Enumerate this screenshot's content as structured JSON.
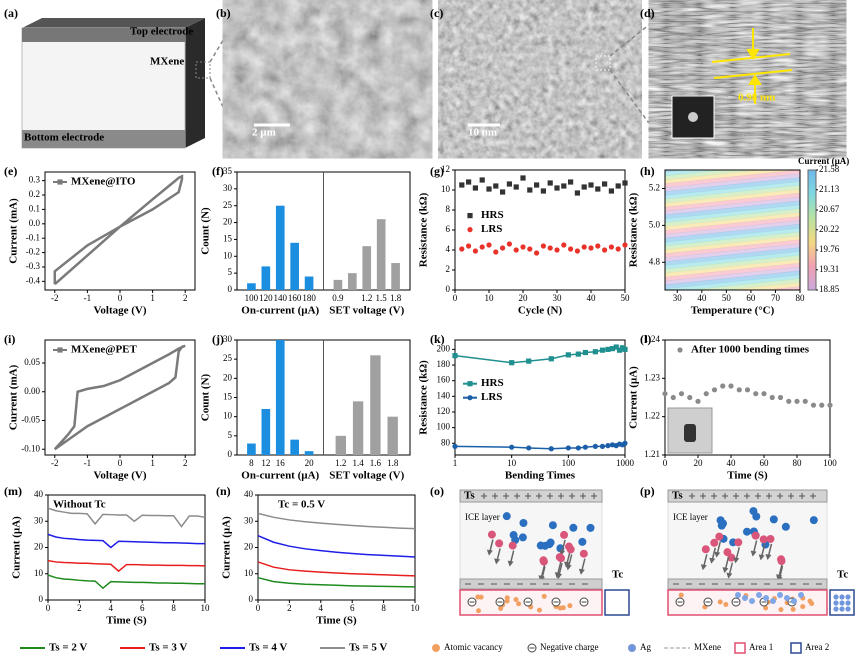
{
  "panels": [
    "(a)",
    "(b)",
    "(c)",
    "(d)",
    "(e)",
    "(f)",
    "(g)",
    "(h)",
    "(i)",
    "(j)",
    "(k)",
    "(l)",
    "(m)",
    "(n)",
    "(o)",
    "(p)"
  ],
  "schematic": {
    "top": "Top electrode",
    "middle": "MXene",
    "bottom": "Bottom electrode"
  },
  "micrographs": [
    {
      "scale_bar": "2 µm"
    },
    {
      "scale_bar": "10 nm"
    },
    {
      "annotation": "0.98 nm"
    }
  ],
  "diagram": {
    "source": "Ts",
    "layer": "ICE layer",
    "control": "Tc"
  },
  "diagram_legend": [
    "Atomic vacancy",
    "Negative charge",
    "Ag",
    "MXene",
    "Area 1",
    "Area 2"
  ],
  "chart_data": [
    {
      "type": "line",
      "x_label": "Voltage (V)",
      "y_label": "Current (mA)",
      "xlim": [
        -2.3,
        2.3
      ],
      "xticks": [
        -2,
        -1,
        0,
        1,
        2
      ],
      "ylim": [
        -0.46,
        0.36
      ],
      "yticks": [
        -0.4,
        -0.3,
        -0.2,
        -0.1,
        {
          "value": 0,
          "label": "0.0"
        },
        0.1,
        0.2,
        0.3
      ],
      "legend": "upper left",
      "series": [
        {
          "name": "MXene@ITO",
          "color": "#7a7a7a",
          "x": [
            -2,
            -1,
            0,
            1,
            1.7,
            1.8,
            1.9,
            1.9,
            1.8,
            1,
            0,
            -1,
            -2,
            -2
          ],
          "values": [
            -0.42,
            -0.22,
            -0.02,
            0.17,
            0.3,
            0.32,
            0.33,
            0.31,
            0.22,
            0.1,
            -0.02,
            -0.15,
            -0.33,
            -0.42
          ]
        }
      ]
    },
    {
      "type": "bar",
      "y_label": "Count (N)",
      "ylim": [
        0,
        35
      ],
      "yticks": [
        0,
        5,
        10,
        15,
        20,
        25,
        30,
        35
      ],
      "groups": [
        {
          "label": "On-current (µA)",
          "categories": [
            "100",
            "120",
            "140",
            "160",
            "180"
          ],
          "values": [
            2,
            7,
            25,
            14,
            4
          ],
          "color": "#1c8ee0"
        },
        {
          "label": "SET voltage (V)",
          "categories": [
            "0.9",
            null,
            "1.2",
            "1.5",
            "1.8"
          ],
          "values": [
            3,
            5,
            13,
            21,
            8
          ],
          "color": "#a0a0a0"
        }
      ]
    },
    {
      "type": "scatter",
      "x_label": "Cycle (N)",
      "y_label": "Resistance (kΩ)",
      "xlim": [
        0,
        50
      ],
      "xticks": [
        0,
        10,
        20,
        30,
        40,
        50
      ],
      "ylim": [
        0,
        12
      ],
      "yticks": [
        0,
        2,
        4,
        6,
        8,
        10,
        12
      ],
      "legend": "center left",
      "x": [
        2,
        4,
        6,
        8,
        10,
        12,
        14,
        16,
        18,
        20,
        22,
        24,
        26,
        28,
        30,
        32,
        34,
        36,
        38,
        40,
        42,
        44,
        46,
        48,
        50
      ],
      "series": [
        {
          "name": "HRS",
          "color": "#333333",
          "marker": "square",
          "values": [
            10.5,
            10.8,
            10.2,
            11,
            10.1,
            10.4,
            9.8,
            10.6,
            10.3,
            11.2,
            10,
            10.5,
            9.9,
            10.7,
            10.2,
            10.4,
            10.8,
            9.7,
            10.3,
            10.5,
            10.1,
            10.6,
            9.9,
            10.4,
            10.7
          ]
        },
        {
          "name": "LRS",
          "color": "#e8322a",
          "marker": "circle",
          "values": [
            4.1,
            4.4,
            3.9,
            4.3,
            4.5,
            3.8,
            4.2,
            4.6,
            4,
            4.3,
            4.1,
            3.7,
            4.4,
            4.2,
            4,
            4.5,
            4.1,
            3.9,
            4.3,
            4.2,
            4.4,
            4,
            4.3,
            4.1,
            4.5
          ]
        }
      ]
    },
    {
      "type": "heatmap",
      "x_label": "Temperature (°C)",
      "y_label": "Resistance (kΩ)",
      "xlim": [
        25,
        80
      ],
      "xticks": [
        30,
        40,
        50,
        60,
        70,
        80
      ],
      "ylim": [
        4.65,
        5.3
      ],
      "yticks": [
        4.8,
        {
          "value": 5.0,
          "label": "5.0"
        },
        5.2
      ],
      "clabel": "Current (µA)",
      "clim": [
        18.85,
        21.58
      ],
      "cticks": [
        18.85,
        19.31,
        19.76,
        20.22,
        20.67,
        21.13,
        21.58
      ],
      "colormap": [
        "#c9a9dc",
        "#f2a0b3",
        "#f4d882",
        "#b7e3a0",
        "#7fd8e0",
        "#6fb8ea"
      ]
    },
    {
      "type": "line",
      "x_label": "Voltage (V)",
      "y_label": "Current (mA)",
      "xlim": [
        -2.3,
        2.3
      ],
      "xticks": [
        -2,
        -1,
        0,
        1,
        2
      ],
      "ylim": [
        -0.11,
        0.09
      ],
      "yticks": [
        {
          "value": -0.1,
          "label": "-0.10"
        },
        {
          "value": -0.05,
          "label": "-0.05"
        },
        {
          "value": 0,
          "label": "0.00"
        },
        {
          "value": 0.05,
          "label": "0.05"
        }
      ],
      "legend": "upper left",
      "series": [
        {
          "name": "MXene@PET",
          "color": "#7a7a7a",
          "x": [
            -2,
            -1.5,
            -1,
            -0.5,
            0,
            0.5,
            1,
            1.5,
            1.7,
            1.8,
            1.9,
            2,
            1.8,
            1.5,
            1,
            0.5,
            0,
            -0.5,
            -1,
            -1.3,
            -1.4,
            -1.6,
            -2
          ],
          "values": [
            -0.1,
            -0.08,
            -0.06,
            -0.045,
            -0.03,
            -0.015,
            0,
            0.015,
            0.025,
            0.07,
            0.078,
            0.08,
            0.075,
            0.065,
            0.05,
            0.035,
            0.02,
            0.01,
            0.005,
            0,
            -0.06,
            -0.075,
            -0.1
          ]
        }
      ]
    },
    {
      "type": "bar",
      "y_label": "Count (N)",
      "ylim": [
        0,
        30
      ],
      "yticks": [
        0,
        5,
        10,
        15,
        20,
        25,
        30
      ],
      "groups": [
        {
          "label": "On-current (µA)",
          "categories": [
            "8",
            "12",
            "16",
            null,
            "20"
          ],
          "values": [
            3,
            12,
            30,
            4,
            1
          ],
          "color": "#1c8ee0"
        },
        {
          "label": "SET voltage (V)",
          "categories": [
            "1.2",
            "1.4",
            "1.6",
            "1.8"
          ],
          "values": [
            5,
            14,
            26,
            10
          ],
          "color": "#a0a0a0"
        }
      ]
    },
    {
      "type": "line",
      "markers": true,
      "xlog": true,
      "x_label": "Bending  Times",
      "y_label": "Resistance (kΩ)",
      "xlim": [
        1,
        1000
      ],
      "xticks": [
        1,
        10,
        100,
        1000
      ],
      "ylim": [
        65,
        212
      ],
      "yticks": [
        80,
        100,
        120,
        140,
        160,
        180,
        200
      ],
      "legend": "center left",
      "x": [
        1,
        10,
        20,
        50,
        100,
        150,
        200,
        300,
        400,
        500,
        600,
        700,
        800,
        900,
        1000
      ],
      "series": [
        {
          "name": "HRS",
          "color": "#1f8f8f",
          "marker": "square",
          "values": [
            192,
            183,
            185,
            188,
            193,
            194,
            196,
            197,
            199,
            200,
            201,
            203,
            199,
            202,
            200
          ]
        },
        {
          "name": "LRS",
          "color": "#1a5fa8",
          "marker": "circle",
          "values": [
            76,
            75,
            74,
            73,
            74,
            74,
            75,
            76,
            76,
            77,
            78,
            77,
            79,
            78,
            80
          ]
        }
      ]
    },
    {
      "type": "scatter",
      "x_label": "Time (S)",
      "y_label": "Current (µA)",
      "xlim": [
        0,
        100
      ],
      "xticks": [
        0,
        20,
        40,
        60,
        80,
        100
      ],
      "ylim": [
        1.21,
        1.24
      ],
      "yticks": [
        1.21,
        1.22,
        1.23,
        1.24
      ],
      "legend": "upper left",
      "x": [
        0,
        5,
        10,
        15,
        20,
        25,
        30,
        35,
        40,
        45,
        50,
        55,
        60,
        65,
        70,
        75,
        80,
        85,
        90,
        95,
        100
      ],
      "series": [
        {
          "name": "After 1000 bending times",
          "color": "#8a8a8a",
          "marker": "circle",
          "values": [
            1.226,
            1.225,
            1.226,
            1.225,
            1.224,
            1.226,
            1.227,
            1.228,
            1.228,
            1.227,
            1.227,
            1.226,
            1.226,
            1.225,
            1.225,
            1.224,
            1.224,
            1.224,
            1.223,
            1.223,
            1.223
          ]
        }
      ]
    },
    {
      "type": "line",
      "annotation": "Without Tc",
      "x_label": "Time (S)",
      "y_label": "Current (µA)",
      "xlim": [
        0,
        10
      ],
      "xticks": [
        0,
        2,
        4,
        6,
        8,
        10
      ],
      "ylim": [
        0,
        40
      ],
      "yticks": [
        0,
        10,
        20,
        30,
        40
      ],
      "legend": "bottom",
      "x": [
        0,
        0.5,
        1,
        1.5,
        2,
        2.5,
        3,
        3.5,
        4,
        4.5,
        5,
        5.5,
        6,
        6.5,
        7,
        7.5,
        8,
        8.5,
        9,
        9.5,
        10
      ],
      "series": [
        {
          "name": "Ts = 2 V",
          "color": "#1e8a1e",
          "values": [
            9.5,
            8.5,
            8,
            7.8,
            7.5,
            7.3,
            7.2,
            4.5,
            7,
            6.9,
            6.8,
            6.7,
            6.7,
            6.6,
            6.5,
            6.5,
            6.4,
            6.4,
            6.3,
            6.2,
            6.2
          ]
        },
        {
          "name": "Ts = 3 V",
          "color": "#e81e1e",
          "values": [
            15,
            14.5,
            14.3,
            14.2,
            14,
            14,
            13.8,
            13.7,
            13.6,
            11,
            13.5,
            13.5,
            13.4,
            13.3,
            13.3,
            13.2,
            13.2,
            13.2,
            13.1,
            13.1,
            13
          ]
        },
        {
          "name": "Ts = 4 V",
          "color": "#1e1ee8",
          "values": [
            25,
            24,
            23.5,
            23.3,
            23,
            22.8,
            22.7,
            22.6,
            20,
            22.4,
            22.3,
            22.2,
            22.1,
            22,
            21.9,
            21.8,
            21.8,
            21.7,
            21.6,
            21.5,
            21.5
          ]
        },
        {
          "name": "Ts = 5 V",
          "color": "#8c8c8c",
          "values": [
            35,
            34,
            33.5,
            33,
            33,
            32.8,
            29,
            32.6,
            32.5,
            32.4,
            32.4,
            30,
            32.3,
            32.2,
            32.2,
            32.1,
            32.1,
            28,
            32,
            32,
            31.5
          ]
        }
      ]
    },
    {
      "type": "line",
      "annotation": "Tc = 0.5 V",
      "x_label": "Time (S)",
      "y_label": "Current (µA)",
      "xlim": [
        0,
        10
      ],
      "xticks": [
        0,
        2,
        4,
        6,
        8,
        10
      ],
      "ylim": [
        0,
        40
      ],
      "yticks": [
        0,
        10,
        20,
        30,
        40
      ],
      "x": [
        0,
        1,
        2,
        3,
        4,
        5,
        6,
        7,
        8,
        9,
        10
      ],
      "series": [
        {
          "color": "#1e8a1e",
          "values": [
            8.5,
            7,
            6.4,
            6,
            5.8,
            5.6,
            5.4,
            5.3,
            5.2,
            5.1,
            5
          ]
        },
        {
          "color": "#e81e1e",
          "values": [
            14.5,
            12.5,
            11.5,
            11,
            10.6,
            10.3,
            10,
            9.8,
            9.6,
            9.4,
            9.2
          ]
        },
        {
          "color": "#1e1ee8",
          "values": [
            24.5,
            22,
            20.5,
            19.5,
            18.8,
            18.2,
            17.7,
            17.3,
            17,
            16.7,
            16.4
          ]
        },
        {
          "color": "#8c8c8c",
          "values": [
            33,
            31.5,
            30.5,
            29.8,
            29.3,
            28.8,
            28.4,
            28,
            27.7,
            27.4,
            27.2
          ]
        }
      ]
    }
  ]
}
